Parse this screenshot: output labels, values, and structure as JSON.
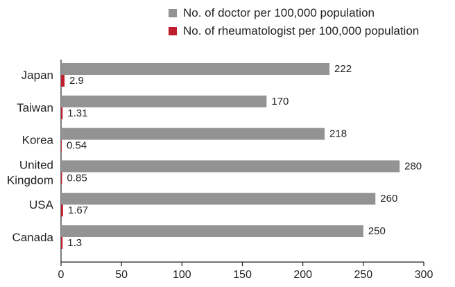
{
  "chart_data": {
    "type": "bar",
    "orientation": "horizontal",
    "categories": [
      [
        "Japan"
      ],
      [
        "Taiwan"
      ],
      [
        "Korea"
      ],
      [
        "United",
        "Kingdom"
      ],
      [
        "USA"
      ],
      [
        "Canada"
      ]
    ],
    "series": [
      {
        "name": "No. of doctor per 100,000 population",
        "color": "#939393",
        "values": [
          222,
          170,
          218,
          280,
          260,
          250
        ],
        "labels": [
          "222",
          "170",
          "218",
          "280",
          "260",
          "250"
        ]
      },
      {
        "name": "No. of rheumatologist per 100,000 population",
        "color": "#bf1e2e",
        "values": [
          2.9,
          1.31,
          0.54,
          0.85,
          1.67,
          1.3
        ],
        "labels": [
          "2.9",
          "1.31",
          "0.54",
          "0.85",
          "1.67",
          "1.3"
        ]
      }
    ],
    "xlim": [
      0,
      300
    ],
    "xticks": [
      0,
      50,
      100,
      150,
      200,
      250,
      300
    ],
    "title": "",
    "xlabel": "",
    "ylabel": "",
    "legend_position": "top-right",
    "grid": false
  }
}
